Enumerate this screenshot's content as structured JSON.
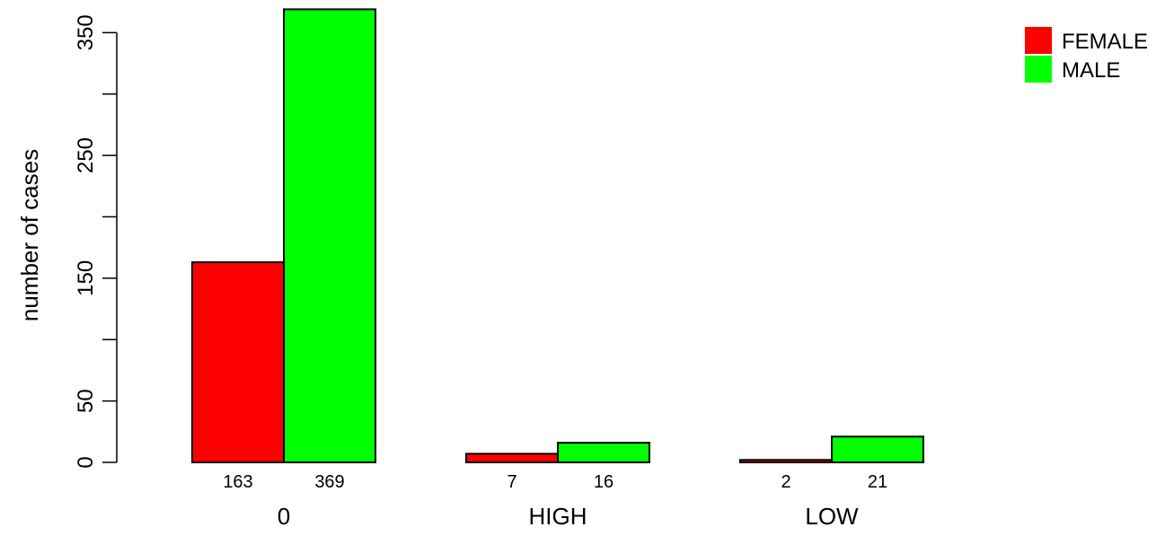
{
  "chart_data": {
    "type": "bar",
    "categories": [
      "0",
      "HIGH",
      "LOW"
    ],
    "series": [
      {
        "name": "FEMALE",
        "color": "#ff0000",
        "values": [
          163,
          7,
          2
        ]
      },
      {
        "name": "MALE",
        "color": "#00ff00",
        "values": [
          369,
          16,
          21
        ]
      }
    ],
    "title": "",
    "xlabel": "",
    "ylabel": "number of cases",
    "ylim": [
      0,
      370
    ],
    "yticks": [
      0,
      50,
      100,
      150,
      200,
      250,
      300,
      350
    ],
    "ytick_labels": [
      "0",
      "50",
      "",
      "150",
      "",
      "250",
      "",
      "350"
    ],
    "data_labels": [
      [
        "163",
        "369"
      ],
      [
        "7",
        "16"
      ],
      [
        "2",
        "21"
      ]
    ],
    "grid": false,
    "legend": "top-right"
  }
}
